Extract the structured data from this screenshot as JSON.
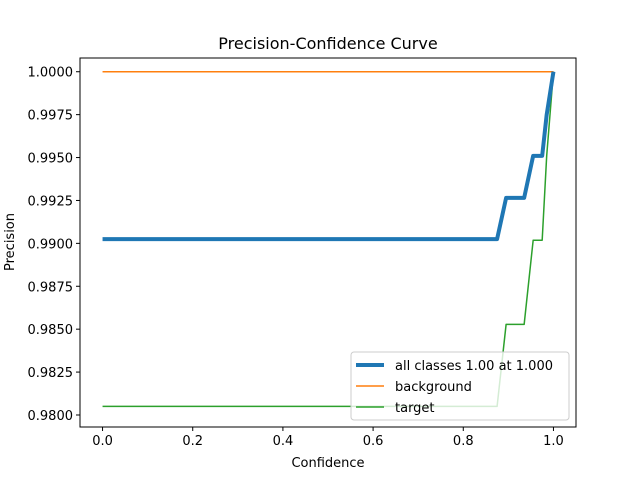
{
  "chart_data": {
    "type": "line",
    "title": "Precision-Confidence Curve",
    "xlabel": "Confidence",
    "ylabel": "Precision",
    "xlim": [
      -0.05,
      1.05
    ],
    "ylim": [
      0.9793,
      1.0008
    ],
    "x_ticks": [
      0.0,
      0.2,
      0.4,
      0.6,
      0.8,
      1.0
    ],
    "x_tick_labels": [
      "0.0",
      "0.2",
      "0.4",
      "0.6",
      "0.8",
      "1.0"
    ],
    "y_ticks": [
      0.98,
      0.9825,
      0.985,
      0.9875,
      0.99,
      0.9925,
      0.995,
      0.9975,
      1.0
    ],
    "y_tick_labels": [
      "0.9800",
      "0.9825",
      "0.9850",
      "0.9875",
      "0.9900",
      "0.9925",
      "0.9950",
      "0.9975",
      "1.0000"
    ],
    "grid": false,
    "legend_position": "lower-right",
    "series": [
      {
        "name": "all classes 1.00 at 1.000",
        "color": "#1f77b4",
        "width": 4,
        "x": [
          0.0,
          0.875,
          0.895,
          0.935,
          0.955,
          0.975,
          0.985,
          1.0
        ],
        "y": [
          0.99025,
          0.99025,
          0.99265,
          0.99265,
          0.9951,
          0.9951,
          0.9975,
          1.0
        ]
      },
      {
        "name": "background",
        "color": "#ff7f0e",
        "width": 1.5,
        "x": [
          0.0,
          1.0
        ],
        "y": [
          1.0,
          1.0
        ]
      },
      {
        "name": "target",
        "color": "#2ca02c",
        "width": 1.5,
        "x": [
          0.0,
          0.875,
          0.895,
          0.935,
          0.955,
          0.975,
          0.985,
          1.0
        ],
        "y": [
          0.9805,
          0.9805,
          0.98528,
          0.98528,
          0.99018,
          0.99018,
          0.9951,
          1.0
        ]
      }
    ]
  }
}
